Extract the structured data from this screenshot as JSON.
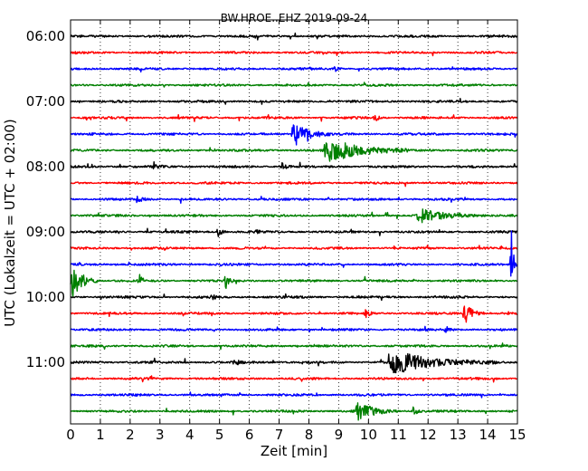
{
  "chart_data": {
    "type": "line",
    "title": "BW.HROE..EHZ 2019-09-24",
    "xlabel": "Zeit  [min]",
    "ylabel": "UTC (Lokalzeit = UTC + 02:00)",
    "xlim": [
      0,
      15
    ],
    "x_ticks": [
      "0",
      "1",
      "2",
      "3",
      "4",
      "5",
      "6",
      "7",
      "8",
      "9",
      "10",
      "11",
      "12",
      "13",
      "14",
      "15"
    ],
    "y_ticks": [
      "06:00",
      "07:00",
      "08:00",
      "09:00",
      "10:00",
      "11:00"
    ],
    "grid": "vertical dotted",
    "trace_interval_min": 15,
    "trace_colors": [
      "#000000",
      "#ff0000",
      "#0000ff",
      "#008000"
    ],
    "traces": [
      {
        "start": "06:00",
        "color": "#000000",
        "events": []
      },
      {
        "start": "06:15",
        "color": "#ff0000",
        "events": []
      },
      {
        "start": "06:30",
        "color": "#0000ff",
        "events": [
          {
            "t": 8.85,
            "amp": 6,
            "dur": 0.25
          }
        ]
      },
      {
        "start": "06:45",
        "color": "#008000",
        "events": []
      },
      {
        "start": "07:00",
        "color": "#000000",
        "events": []
      },
      {
        "start": "07:15",
        "color": "#ff0000",
        "events": [
          {
            "t": 10.2,
            "amp": 5,
            "dur": 0.3
          }
        ]
      },
      {
        "start": "07:30",
        "color": "#0000ff",
        "events": [
          {
            "t": 7.45,
            "amp": 16,
            "dur": 1.3
          }
        ]
      },
      {
        "start": "07:45",
        "color": "#008000",
        "events": [
          {
            "t": 8.55,
            "amp": 17,
            "dur": 2.8
          }
        ]
      },
      {
        "start": "08:00",
        "color": "#000000",
        "events": [
          {
            "t": 2.8,
            "amp": 5,
            "dur": 0.4
          },
          {
            "t": 7.1,
            "amp": 4,
            "dur": 0.4
          }
        ]
      },
      {
        "start": "08:15",
        "color": "#ff0000",
        "events": []
      },
      {
        "start": "08:30",
        "color": "#0000ff",
        "events": [
          {
            "t": 2.2,
            "amp": 4,
            "dur": 0.5
          }
        ]
      },
      {
        "start": "08:45",
        "color": "#008000",
        "events": [
          {
            "t": 11.65,
            "amp": 8,
            "dur": 2.3
          }
        ]
      },
      {
        "start": "09:00",
        "color": "#000000",
        "events": [
          {
            "t": 4.95,
            "amp": 5,
            "dur": 0.3
          },
          {
            "t": 6.25,
            "amp": 4,
            "dur": 0.2
          }
        ]
      },
      {
        "start": "09:15",
        "color": "#ff0000",
        "events": []
      },
      {
        "start": "09:30",
        "color": "#0000ff",
        "events": [
          {
            "t": 14.8,
            "amp": 42,
            "dur": 0.2
          }
        ]
      },
      {
        "start": "09:45",
        "color": "#008000",
        "events": [
          {
            "t": 0.0,
            "amp": 22,
            "dur": 1.0
          },
          {
            "t": 2.3,
            "amp": 8,
            "dur": 0.3
          },
          {
            "t": 5.2,
            "amp": 10,
            "dur": 0.3
          }
        ]
      },
      {
        "start": "10:00",
        "color": "#000000",
        "events": [
          {
            "t": 4.7,
            "amp": 4,
            "dur": 0.3
          }
        ]
      },
      {
        "start": "10:15",
        "color": "#ff0000",
        "events": [
          {
            "t": 13.2,
            "amp": 14,
            "dur": 0.7
          },
          {
            "t": 9.9,
            "amp": 4,
            "dur": 0.4
          }
        ]
      },
      {
        "start": "10:30",
        "color": "#0000ff",
        "events": [
          {
            "t": 12.6,
            "amp": 5,
            "dur": 0.3
          }
        ]
      },
      {
        "start": "10:45",
        "color": "#008000",
        "events": []
      },
      {
        "start": "11:00",
        "color": "#000000",
        "events": [
          {
            "t": 10.7,
            "amp": 14,
            "dur": 3.6
          },
          {
            "t": 5.5,
            "amp": 4,
            "dur": 0.4
          }
        ]
      },
      {
        "start": "11:15",
        "color": "#ff0000",
        "events": []
      },
      {
        "start": "11:30",
        "color": "#0000ff",
        "events": []
      },
      {
        "start": "11:45",
        "color": "#008000",
        "events": [
          {
            "t": 9.6,
            "amp": 11,
            "dur": 1.4
          },
          {
            "t": 11.5,
            "amp": 6,
            "dur": 0.3
          }
        ]
      }
    ]
  }
}
